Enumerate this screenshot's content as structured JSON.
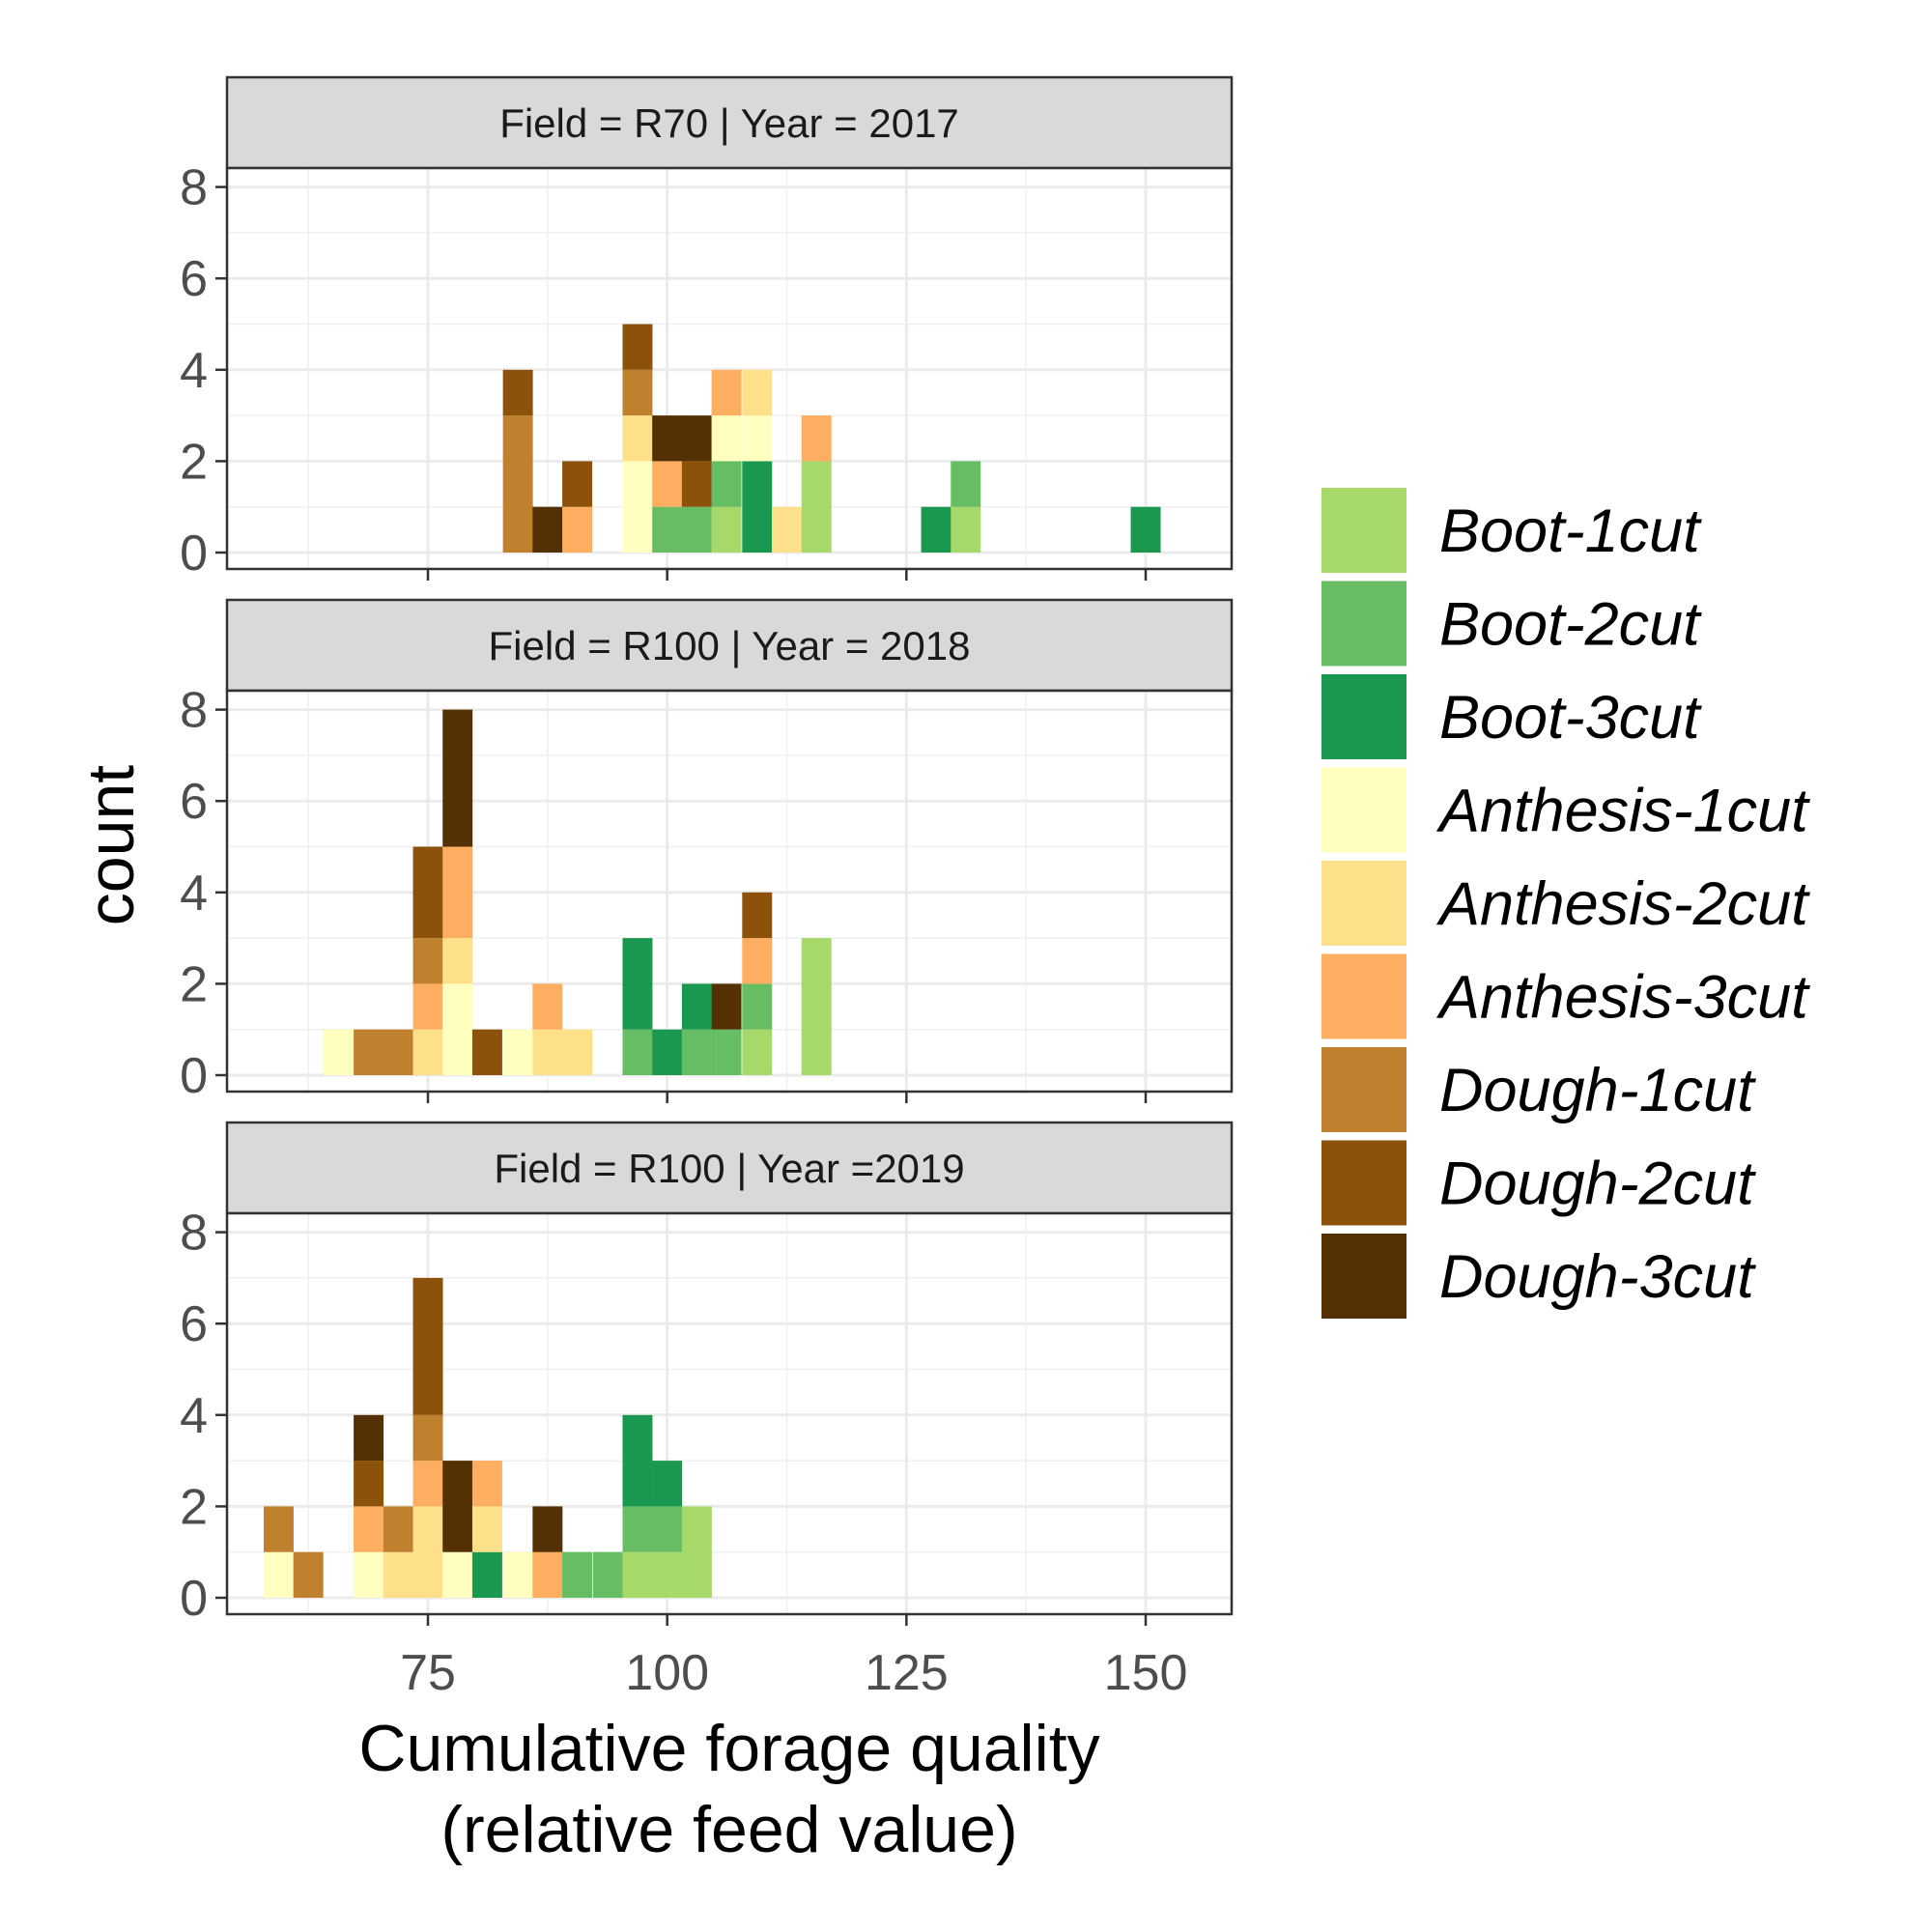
{
  "chart_data": {
    "type": "bar",
    "subtype": "stacked-histogram-faceted",
    "xlabel": [
      "Cumulative forage quality",
      "(relative feed value)"
    ],
    "ylabel": "count",
    "bin_width": 3.125,
    "xlim": [
      55,
      160
    ],
    "ylim": [
      0,
      8
    ],
    "x_ticks": [
      75,
      100,
      125,
      150
    ],
    "y_ticks": [
      0,
      2,
      4,
      6,
      8
    ],
    "grid": true,
    "legend_position": "right",
    "series": [
      {
        "name": "Boot-1cut",
        "color": "#a6d96a"
      },
      {
        "name": "Boot-2cut",
        "color": "#66bd63"
      },
      {
        "name": "Boot-3cut",
        "color": "#1a9850"
      },
      {
        "name": "Anthesis-1cut",
        "color": "#ffffbf"
      },
      {
        "name": "Anthesis-2cut",
        "color": "#fee08b"
      },
      {
        "name": "Anthesis-3cut",
        "color": "#fdae61"
      },
      {
        "name": "Dough-1cut",
        "color": "#bf812d"
      },
      {
        "name": "Dough-2cut",
        "color": "#8c510a"
      },
      {
        "name": "Dough-3cut",
        "color": "#543005"
      }
    ],
    "panels": [
      {
        "label": "Field = R70  | Year = 2017",
        "bins": [
          {
            "center": 84.4,
            "counts": {
              "Dough-1cut": 3,
              "Dough-2cut": 1
            }
          },
          {
            "center": 87.5,
            "counts": {
              "Dough-3cut": 1
            }
          },
          {
            "center": 90.6,
            "counts": {
              "Anthesis-3cut": 1,
              "Dough-2cut": 1
            }
          },
          {
            "center": 96.9,
            "counts": {
              "Anthesis-1cut": 2,
              "Anthesis-2cut": 1,
              "Dough-1cut": 1,
              "Dough-2cut": 1
            }
          },
          {
            "center": 100.0,
            "counts": {
              "Boot-2cut": 1,
              "Anthesis-3cut": 1,
              "Dough-3cut": 1
            }
          },
          {
            "center": 103.1,
            "counts": {
              "Boot-2cut": 1,
              "Dough-2cut": 1,
              "Dough-3cut": 1
            }
          },
          {
            "center": 106.2,
            "counts": {
              "Boot-1cut": 1,
              "Boot-2cut": 1,
              "Anthesis-1cut": 1,
              "Anthesis-3cut": 1
            }
          },
          {
            "center": 109.4,
            "counts": {
              "Boot-3cut": 2,
              "Anthesis-1cut": 1,
              "Anthesis-2cut": 1
            }
          },
          {
            "center": 112.5,
            "counts": {
              "Anthesis-2cut": 1
            }
          },
          {
            "center": 115.6,
            "counts": {
              "Boot-1cut": 2,
              "Anthesis-3cut": 1
            }
          },
          {
            "center": 128.1,
            "counts": {
              "Boot-3cut": 1
            }
          },
          {
            "center": 131.2,
            "counts": {
              "Boot-1cut": 1,
              "Boot-2cut": 1
            }
          },
          {
            "center": 150.0,
            "counts": {
              "Boot-3cut": 1
            }
          }
        ]
      },
      {
        "label": "Field = R100 | Year = 2018",
        "bins": [
          {
            "center": 65.6,
            "counts": {
              "Anthesis-1cut": 1
            }
          },
          {
            "center": 68.8,
            "counts": {
              "Dough-1cut": 1
            }
          },
          {
            "center": 71.9,
            "counts": {
              "Dough-1cut": 1
            }
          },
          {
            "center": 75.0,
            "counts": {
              "Anthesis-2cut": 1,
              "Anthesis-3cut": 1,
              "Dough-1cut": 1,
              "Dough-2cut": 2
            }
          },
          {
            "center": 78.1,
            "counts": {
              "Anthesis-1cut": 2,
              "Anthesis-2cut": 1,
              "Anthesis-3cut": 2,
              "Dough-3cut": 3
            }
          },
          {
            "center": 81.2,
            "counts": {
              "Dough-2cut": 1
            }
          },
          {
            "center": 84.4,
            "counts": {
              "Anthesis-1cut": 1
            }
          },
          {
            "center": 87.5,
            "counts": {
              "Anthesis-2cut": 1,
              "Anthesis-3cut": 1
            }
          },
          {
            "center": 90.6,
            "counts": {
              "Anthesis-2cut": 1
            }
          },
          {
            "center": 96.9,
            "counts": {
              "Boot-2cut": 1,
              "Boot-3cut": 2
            }
          },
          {
            "center": 100.0,
            "counts": {
              "Boot-3cut": 1
            }
          },
          {
            "center": 103.1,
            "counts": {
              "Boot-2cut": 1,
              "Boot-3cut": 1
            }
          },
          {
            "center": 106.2,
            "counts": {
              "Boot-2cut": 1,
              "Dough-3cut": 1
            }
          },
          {
            "center": 109.4,
            "counts": {
              "Boot-1cut": 1,
              "Boot-2cut": 1,
              "Anthesis-3cut": 1,
              "Dough-2cut": 1
            }
          },
          {
            "center": 115.6,
            "counts": {
              "Boot-1cut": 3
            }
          }
        ]
      },
      {
        "label": "Field = R100 | Year =2019",
        "bins": [
          {
            "center": 59.4,
            "counts": {
              "Anthesis-1cut": 1,
              "Dough-1cut": 1
            }
          },
          {
            "center": 62.5,
            "counts": {
              "Dough-1cut": 1
            }
          },
          {
            "center": 68.8,
            "counts": {
              "Anthesis-1cut": 1,
              "Anthesis-3cut": 1,
              "Dough-2cut": 1,
              "Dough-3cut": 1
            }
          },
          {
            "center": 71.9,
            "counts": {
              "Anthesis-2cut": 1,
              "Dough-1cut": 1
            }
          },
          {
            "center": 75.0,
            "counts": {
              "Anthesis-2cut": 2,
              "Anthesis-3cut": 1,
              "Dough-1cut": 1,
              "Dough-2cut": 3
            }
          },
          {
            "center": 78.1,
            "counts": {
              "Anthesis-1cut": 1,
              "Dough-3cut": 2
            }
          },
          {
            "center": 81.2,
            "counts": {
              "Boot-3cut": 1,
              "Anthesis-2cut": 1,
              "Anthesis-3cut": 1
            }
          },
          {
            "center": 84.4,
            "counts": {
              "Anthesis-1cut": 1
            }
          },
          {
            "center": 87.5,
            "counts": {
              "Anthesis-3cut": 1,
              "Dough-3cut": 1
            }
          },
          {
            "center": 90.6,
            "counts": {
              "Boot-2cut": 1
            }
          },
          {
            "center": 93.8,
            "counts": {
              "Boot-2cut": 1
            }
          },
          {
            "center": 96.9,
            "counts": {
              "Boot-1cut": 1,
              "Boot-2cut": 1,
              "Boot-3cut": 2
            }
          },
          {
            "center": 100.0,
            "counts": {
              "Boot-1cut": 1,
              "Boot-2cut": 1,
              "Boot-3cut": 1
            }
          },
          {
            "center": 103.1,
            "counts": {
              "Boot-1cut": 2
            }
          }
        ]
      }
    ]
  }
}
